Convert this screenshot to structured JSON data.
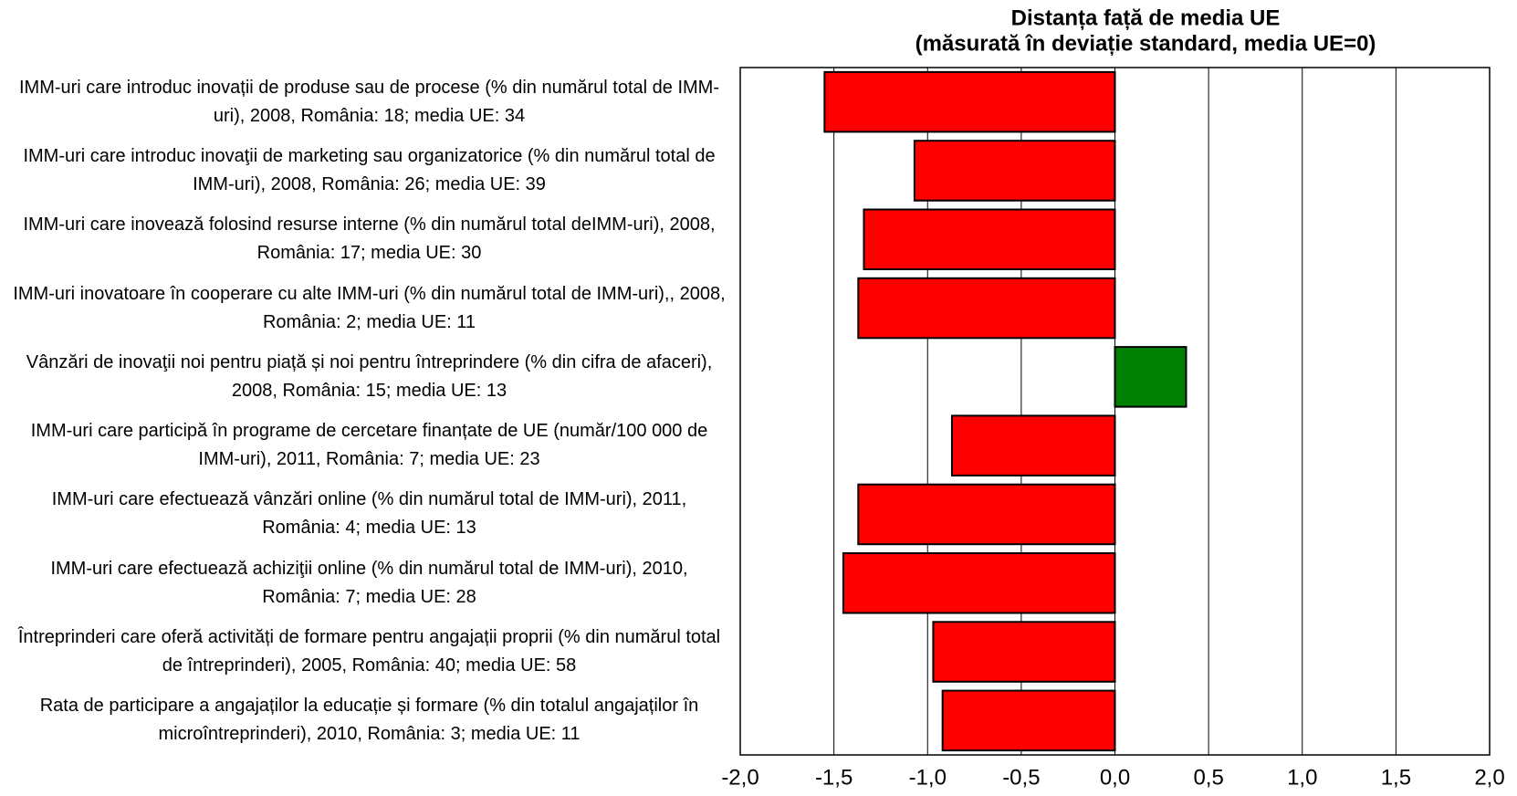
{
  "chart_data": {
    "type": "bar",
    "orientation": "horizontal",
    "title": "Distanța față de media UE",
    "subtitle": "(măsurată în deviație standard, media UE=0)",
    "categories": [
      "IMM-uri care introduc inovații de produse sau de procese (% din numărul total de IMM-uri), 2008, România: 18; media UE: 34",
      "IMM-uri care introduc inovaţii de marketing sau organizatorice (% din numărul total de IMM-uri), 2008, România: 26; media UE: 39",
      "IMM-uri care inovează folosind resurse interne (% din numărul total deIMM-uri), 2008, România: 17; media UE: 30",
      "IMM-uri inovatoare în cooperare cu alte IMM-uri (% din numărul total de IMM-uri),, 2008, România: 2; media UE: 11",
      "Vânzări de inovaţii noi pentru piață și noi pentru întreprindere (% din cifra de afaceri), 2008, România: 15; media UE: 13",
      "IMM-uri care participă în programe de cercetare finanțate de UE (număr/100 000 de IMM-uri), 2011, România: 7; media UE: 23",
      "IMM-uri care efectuează vânzări online (% din numărul total de IMM-uri), 2011, România: 4; media UE: 13",
      "IMM-uri care efectuează achiziţii online (% din numărul total de IMM-uri), 2010, România: 7; media UE: 28",
      "Întreprinderi care oferă activități de formare pentru angajații proprii (% din numărul total de întreprinderi), 2005, România: 40; media UE: 58",
      "Rata de participare a angajaților la educație și formare (% din totalul angajaților în microîntreprinderi), 2010, România: 3; media UE: 11"
    ],
    "values": [
      -1.55,
      -1.07,
      -1.34,
      -1.37,
      0.38,
      -0.87,
      -1.37,
      -1.45,
      -0.97,
      -0.92
    ],
    "colors": [
      "#ff0000",
      "#ff0000",
      "#ff0000",
      "#ff0000",
      "#008000",
      "#ff0000",
      "#ff0000",
      "#ff0000",
      "#ff0000",
      "#ff0000"
    ],
    "xlim": [
      -2,
      2
    ],
    "xticks": [
      {
        "value": -2,
        "label": "-2,0"
      },
      {
        "value": -1.5,
        "label": "-1,5"
      },
      {
        "value": -1,
        "label": "-1,0"
      },
      {
        "value": -0.5,
        "label": "-0,5"
      },
      {
        "value": 0,
        "label": "0,0"
      },
      {
        "value": 0.5,
        "label": "0,5"
      },
      {
        "value": 1,
        "label": "1,0"
      },
      {
        "value": 1.5,
        "label": "1,5"
      },
      {
        "value": 2,
        "label": "2,0"
      }
    ],
    "grid": true
  }
}
